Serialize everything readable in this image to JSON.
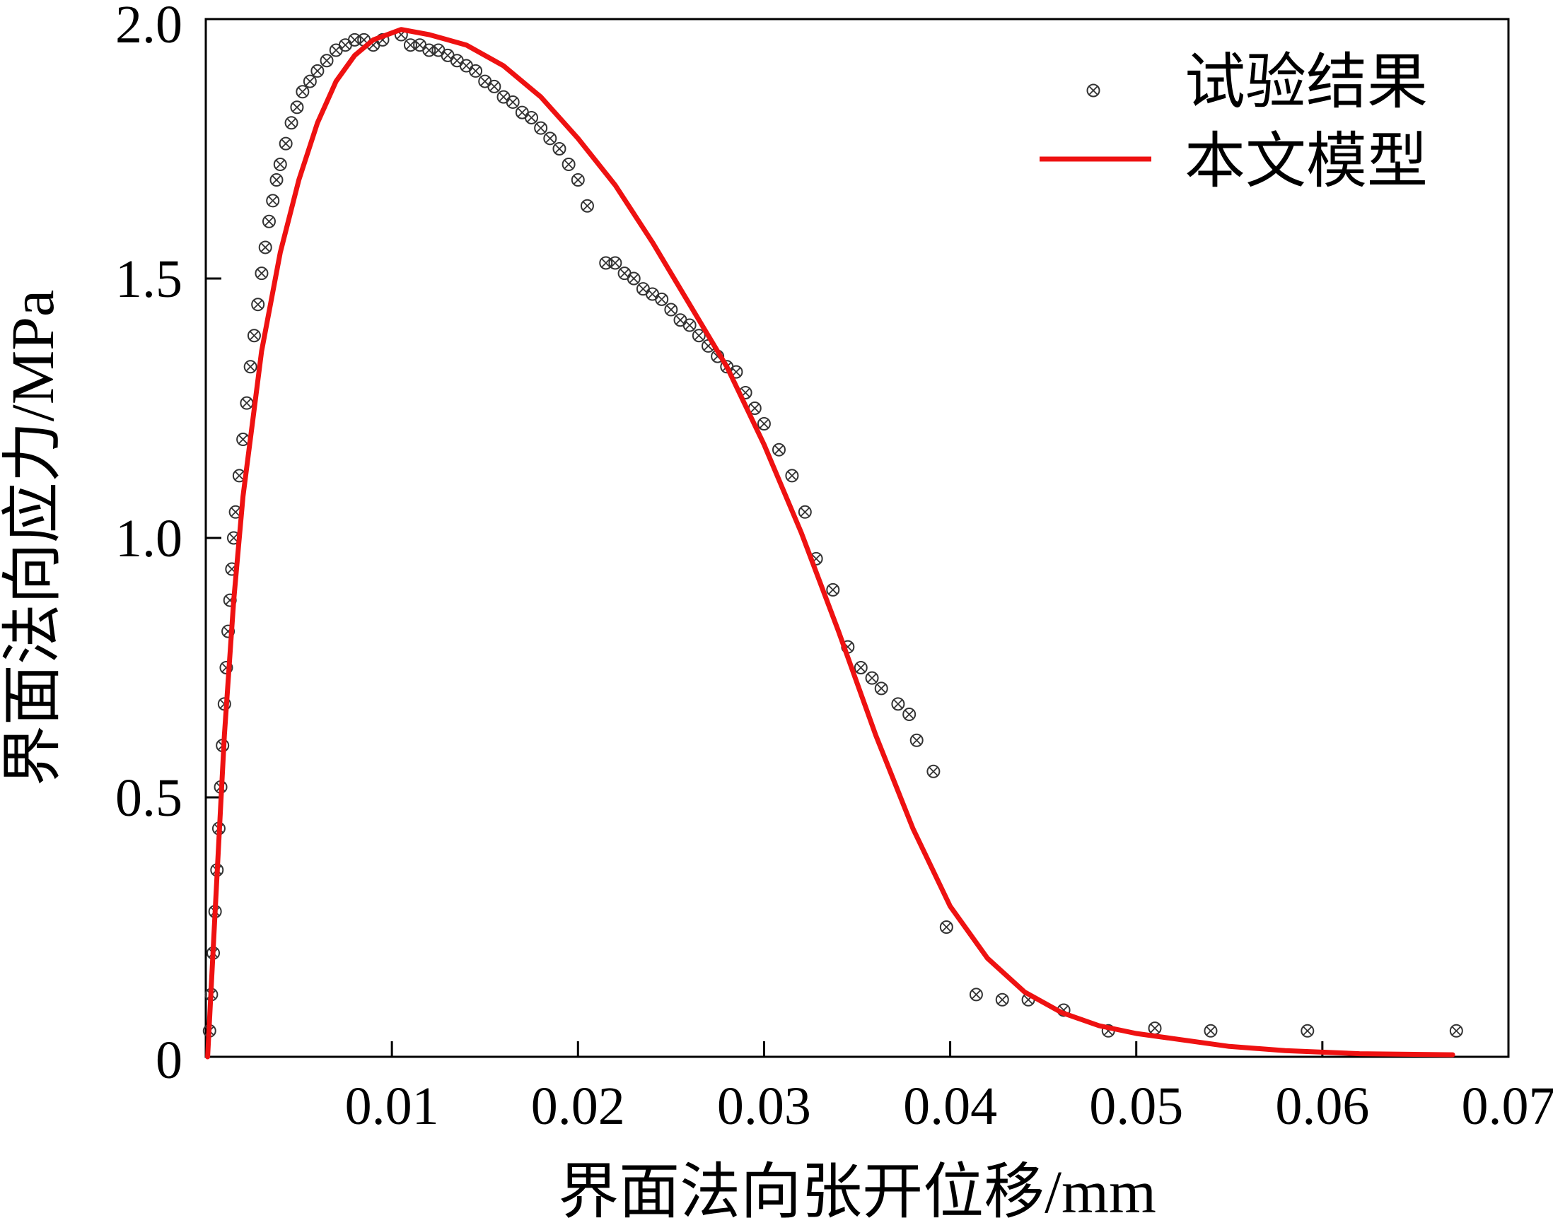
{
  "chart_data": {
    "type": "scatter",
    "xlabel": "界面法向张开位移/mm",
    "ylabel": "界面法向应力/MPa",
    "xlim": [
      0,
      0.07
    ],
    "ylim": [
      0,
      2.0
    ],
    "x_ticks": [
      0.01,
      0.02,
      0.03,
      0.04,
      0.05,
      0.06,
      0.07
    ],
    "x_tick_labels": [
      "0.01",
      "0.02",
      "0.03",
      "0.04",
      "0.05",
      "0.06",
      "0.07"
    ],
    "y_ticks": [
      0,
      0.5,
      1.0,
      1.5,
      2.0
    ],
    "y_tick_labels": [
      "0",
      "0.5",
      "1.0",
      "1.5",
      "2.0"
    ],
    "grid": false,
    "legend_position": "top-right",
    "series": [
      {
        "name": "试验结果",
        "kind": "scatter",
        "marker": "circle-x",
        "color": "#000000",
        "points": [
          [
            0.0002,
            0.05
          ],
          [
            0.0003,
            0.12
          ],
          [
            0.0004,
            0.2
          ],
          [
            0.0005,
            0.28
          ],
          [
            0.0006,
            0.36
          ],
          [
            0.0007,
            0.44
          ],
          [
            0.0008,
            0.52
          ],
          [
            0.0009,
            0.6
          ],
          [
            0.001,
            0.68
          ],
          [
            0.0011,
            0.75
          ],
          [
            0.0012,
            0.82
          ],
          [
            0.0013,
            0.88
          ],
          [
            0.0014,
            0.94
          ],
          [
            0.0015,
            1.0
          ],
          [
            0.0016,
            1.05
          ],
          [
            0.0018,
            1.12
          ],
          [
            0.002,
            1.19
          ],
          [
            0.0022,
            1.26
          ],
          [
            0.0024,
            1.33
          ],
          [
            0.0026,
            1.39
          ],
          [
            0.0028,
            1.45
          ],
          [
            0.003,
            1.51
          ],
          [
            0.0032,
            1.56
          ],
          [
            0.0034,
            1.61
          ],
          [
            0.0036,
            1.65
          ],
          [
            0.0038,
            1.69
          ],
          [
            0.004,
            1.72
          ],
          [
            0.0043,
            1.76
          ],
          [
            0.0046,
            1.8
          ],
          [
            0.0049,
            1.83
          ],
          [
            0.0052,
            1.86
          ],
          [
            0.0056,
            1.88
          ],
          [
            0.006,
            1.9
          ],
          [
            0.0065,
            1.92
          ],
          [
            0.007,
            1.94
          ],
          [
            0.0075,
            1.95
          ],
          [
            0.008,
            1.96
          ],
          [
            0.0085,
            1.96
          ],
          [
            0.009,
            1.95
          ],
          [
            0.0095,
            1.96
          ],
          [
            0.0105,
            1.97
          ],
          [
            0.011,
            1.95
          ],
          [
            0.0115,
            1.95
          ],
          [
            0.012,
            1.94
          ],
          [
            0.0125,
            1.94
          ],
          [
            0.013,
            1.93
          ],
          [
            0.0135,
            1.92
          ],
          [
            0.014,
            1.91
          ],
          [
            0.0145,
            1.9
          ],
          [
            0.015,
            1.88
          ],
          [
            0.0155,
            1.87
          ],
          [
            0.016,
            1.85
          ],
          [
            0.0165,
            1.84
          ],
          [
            0.017,
            1.82
          ],
          [
            0.0175,
            1.81
          ],
          [
            0.018,
            1.79
          ],
          [
            0.0185,
            1.77
          ],
          [
            0.019,
            1.75
          ],
          [
            0.0195,
            1.72
          ],
          [
            0.02,
            1.69
          ],
          [
            0.0205,
            1.64
          ],
          [
            0.0215,
            1.53
          ],
          [
            0.022,
            1.53
          ],
          [
            0.0225,
            1.51
          ],
          [
            0.023,
            1.5
          ],
          [
            0.0235,
            1.48
          ],
          [
            0.024,
            1.47
          ],
          [
            0.0245,
            1.46
          ],
          [
            0.025,
            1.44
          ],
          [
            0.0255,
            1.42
          ],
          [
            0.026,
            1.41
          ],
          [
            0.0265,
            1.39
          ],
          [
            0.027,
            1.37
          ],
          [
            0.0275,
            1.35
          ],
          [
            0.028,
            1.33
          ],
          [
            0.0285,
            1.32
          ],
          [
            0.029,
            1.28
          ],
          [
            0.0295,
            1.25
          ],
          [
            0.03,
            1.22
          ],
          [
            0.0308,
            1.17
          ],
          [
            0.0315,
            1.12
          ],
          [
            0.0322,
            1.05
          ],
          [
            0.0328,
            0.96
          ],
          [
            0.0337,
            0.9
          ],
          [
            0.0345,
            0.79
          ],
          [
            0.0352,
            0.75
          ],
          [
            0.0358,
            0.73
          ],
          [
            0.0363,
            0.71
          ],
          [
            0.0372,
            0.68
          ],
          [
            0.0378,
            0.66
          ],
          [
            0.0382,
            0.61
          ],
          [
            0.0391,
            0.55
          ],
          [
            0.0398,
            0.25
          ],
          [
            0.0414,
            0.12
          ],
          [
            0.0428,
            0.11
          ],
          [
            0.0442,
            0.11
          ],
          [
            0.0461,
            0.09
          ],
          [
            0.0485,
            0.05
          ],
          [
            0.051,
            0.055
          ],
          [
            0.054,
            0.05
          ],
          [
            0.0592,
            0.05
          ],
          [
            0.0672,
            0.05
          ]
        ]
      },
      {
        "name": "本文模型",
        "kind": "line",
        "color": "#ee1111",
        "points": [
          [
            0.0001,
            0.0
          ],
          [
            0.0005,
            0.28
          ],
          [
            0.001,
            0.62
          ],
          [
            0.0015,
            0.88
          ],
          [
            0.002,
            1.08
          ],
          [
            0.0025,
            1.22
          ],
          [
            0.003,
            1.36
          ],
          [
            0.004,
            1.55
          ],
          [
            0.005,
            1.69
          ],
          [
            0.006,
            1.8
          ],
          [
            0.007,
            1.88
          ],
          [
            0.008,
            1.93
          ],
          [
            0.009,
            1.96
          ],
          [
            0.0105,
            1.98
          ],
          [
            0.012,
            1.97
          ],
          [
            0.014,
            1.95
          ],
          [
            0.016,
            1.91
          ],
          [
            0.018,
            1.85
          ],
          [
            0.02,
            1.77
          ],
          [
            0.022,
            1.68
          ],
          [
            0.024,
            1.57
          ],
          [
            0.026,
            1.45
          ],
          [
            0.028,
            1.33
          ],
          [
            0.03,
            1.18
          ],
          [
            0.032,
            1.01
          ],
          [
            0.034,
            0.82
          ],
          [
            0.036,
            0.62
          ],
          [
            0.038,
            0.44
          ],
          [
            0.04,
            0.29
          ],
          [
            0.042,
            0.19
          ],
          [
            0.044,
            0.125
          ],
          [
            0.046,
            0.085
          ],
          [
            0.048,
            0.06
          ],
          [
            0.05,
            0.045
          ],
          [
            0.052,
            0.035
          ],
          [
            0.055,
            0.02
          ],
          [
            0.058,
            0.012
          ],
          [
            0.062,
            0.006
          ],
          [
            0.067,
            0.004
          ]
        ]
      }
    ]
  }
}
